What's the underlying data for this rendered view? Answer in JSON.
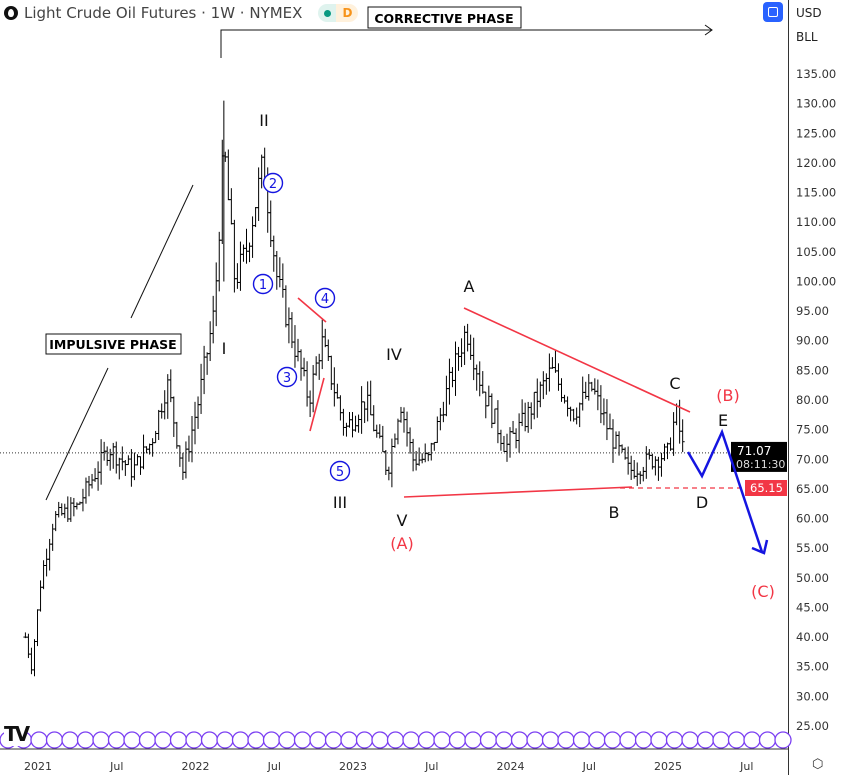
{
  "header": {
    "title": "Light Crude Oil Futures · 1W · NYMEX",
    "badge_market": "market-open-dot",
    "badge_delay": "D"
  },
  "axis": {
    "currency": "USD",
    "unit": "BLL"
  },
  "colors": {
    "accent": "#2962ff",
    "wave_red": "#f23645",
    "wave_blue": "#1515e0",
    "icons_purple": "#7b3ff2"
  },
  "chart_data": {
    "type": "ohlc",
    "symbol": "Light Crude Oil Futures",
    "interval": "1W",
    "exchange": "NYMEX",
    "ylim": [
      25,
      135
    ],
    "y_ticks": [
      "135.00",
      "130.00",
      "125.00",
      "120.00",
      "115.00",
      "110.00",
      "105.00",
      "100.00",
      "95.00",
      "90.00",
      "85.00",
      "80.00",
      "75.00",
      "70.00",
      "65.00",
      "60.00",
      "55.00",
      "50.00",
      "45.00",
      "40.00",
      "35.00",
      "30.00",
      "25.00"
    ],
    "x_ticks": [
      {
        "label": "2021",
        "t": 2021.0
      },
      {
        "label": "Jul",
        "t": 2021.5
      },
      {
        "label": "2022",
        "t": 2022.0
      },
      {
        "label": "Jul",
        "t": 2022.5
      },
      {
        "label": "2023",
        "t": 2023.0
      },
      {
        "label": "Jul",
        "t": 2023.5
      },
      {
        "label": "2024",
        "t": 2024.0
      },
      {
        "label": "Jul",
        "t": 2024.5
      },
      {
        "label": "2025",
        "t": 2025.0
      },
      {
        "label": "Jul",
        "t": 2025.5
      }
    ],
    "price_path": [
      [
        2020.92,
        40
      ],
      [
        2020.96,
        35
      ],
      [
        2021.02,
        50
      ],
      [
        2021.1,
        60
      ],
      [
        2021.25,
        62
      ],
      [
        2021.45,
        72
      ],
      [
        2021.6,
        68
      ],
      [
        2021.72,
        73
      ],
      [
        2021.82,
        83
      ],
      [
        2021.92,
        68
      ],
      [
        2022.02,
        80
      ],
      [
        2022.12,
        95
      ],
      [
        2022.18,
        123
      ],
      [
        2022.25,
        100
      ],
      [
        2022.32,
        105
      ],
      [
        2022.43,
        120
      ],
      [
        2022.52,
        100
      ],
      [
        2022.62,
        90
      ],
      [
        2022.72,
        80
      ],
      [
        2022.8,
        90
      ],
      [
        2022.95,
        75
      ],
      [
        2023.08,
        80
      ],
      [
        2023.22,
        68
      ],
      [
        2023.3,
        80
      ],
      [
        2023.38,
        70
      ],
      [
        2023.48,
        70
      ],
      [
        2023.58,
        80
      ],
      [
        2023.72,
        92
      ],
      [
        2023.82,
        82
      ],
      [
        2023.97,
        72
      ],
      [
        2024.1,
        77
      ],
      [
        2024.26,
        85
      ],
      [
        2024.4,
        78
      ],
      [
        2024.52,
        82
      ],
      [
        2024.62,
        75
      ],
      [
        2024.75,
        68
      ],
      [
        2024.9,
        70
      ],
      [
        2025.0,
        71
      ],
      [
        2025.05,
        78
      ],
      [
        2025.1,
        71.07
      ]
    ],
    "last_price": {
      "value": "71.07",
      "countdown": "08:11:30"
    },
    "level_line": {
      "value": "65.15"
    },
    "annotations": {
      "impulsive": "IMPULSIVE PHASE",
      "corrective": "CORRECTIVE PHASE",
      "w1": "I",
      "w2": "II",
      "w3": "III",
      "w4": "IV",
      "w5": "V",
      "wA_big": "(A)",
      "a": "A",
      "b": "B",
      "c": "C",
      "d": "D",
      "e": "E",
      "wB_big": "(B)",
      "wC_big": "(C)",
      "sub1": "1",
      "sub2": "2",
      "sub3": "3",
      "sub4": "4",
      "sub5": "5"
    }
  }
}
